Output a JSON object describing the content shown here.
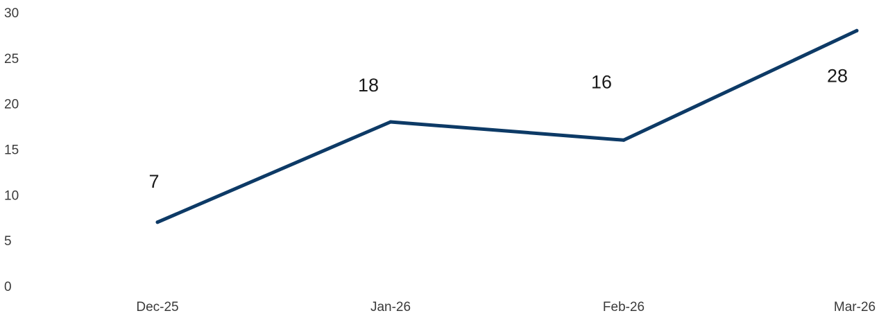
{
  "chart_data": {
    "type": "line",
    "title": "",
    "xlabel": "",
    "ylabel": "",
    "categories": [
      "Dec-25",
      "Jan-26",
      "Feb-26",
      "Mar-26"
    ],
    "series": [
      {
        "values": [
          7,
          18,
          16,
          28
        ],
        "color": "#0d3a66"
      }
    ],
    "data_labels": [
      "7",
      "18",
      "16",
      "28"
    ],
    "y_ticks": [
      "0",
      "5",
      "10",
      "15",
      "20",
      "25",
      "30"
    ],
    "ylim": [
      0,
      30
    ],
    "grid": false,
    "legend": "none"
  }
}
